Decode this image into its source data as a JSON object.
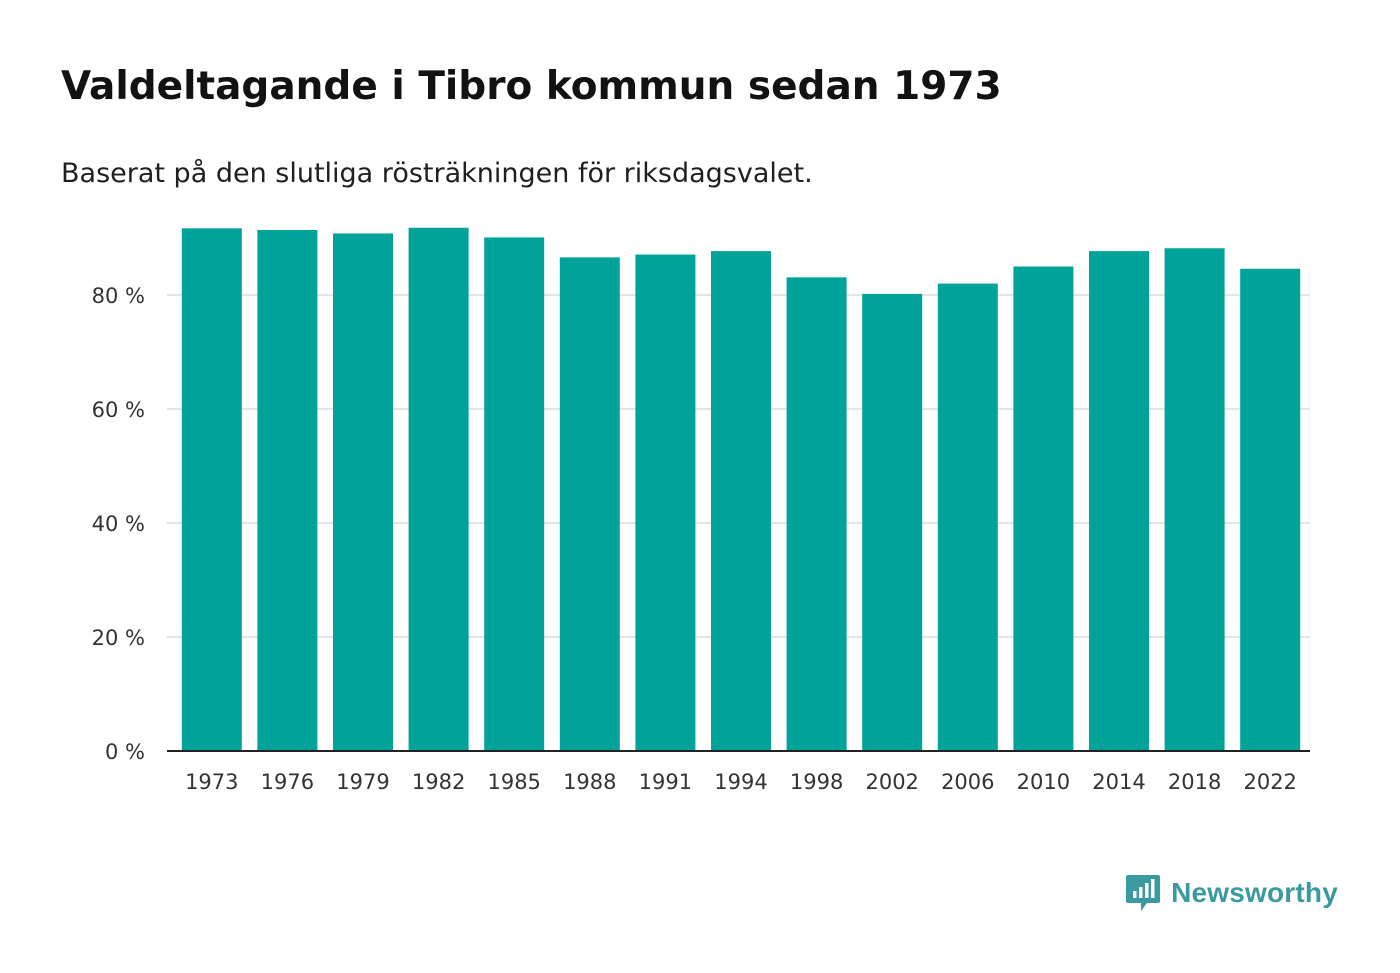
{
  "header": {
    "title": "Valdeltagande i Tibro kommun sedan 1973",
    "subtitle": "Baserat på den slutliga rösträkningen för riksdagsvalet."
  },
  "brand": {
    "name": "Newsworthy",
    "icon": "newsworthy-logo-icon",
    "color": "#3a9aa0"
  },
  "colors": {
    "bar": "#00a39a",
    "grid": "#dcdcdc",
    "axis": "#222222",
    "tick_text": "#333333"
  },
  "chart_data": {
    "type": "bar",
    "title": "Valdeltagande i Tibro kommun sedan 1973",
    "subtitle": "Baserat på den slutliga rösträkningen för riksdagsvalet.",
    "xlabel": "",
    "ylabel": "",
    "categories": [
      "1973",
      "1976",
      "1979",
      "1982",
      "1985",
      "1988",
      "1991",
      "1994",
      "1998",
      "2002",
      "2006",
      "2010",
      "2014",
      "2018",
      "2022"
    ],
    "values": [
      91.7,
      91.4,
      90.8,
      91.8,
      90.1,
      86.6,
      87.1,
      87.7,
      83.1,
      80.2,
      82.0,
      85.0,
      87.7,
      88.2,
      84.6
    ],
    "ylim": [
      0,
      100
    ],
    "yticks": [
      0,
      20,
      40,
      60,
      80
    ],
    "ytick_labels": [
      "0 %",
      "20 %",
      "40 %",
      "60 %",
      "80 %"
    ],
    "grid": true,
    "legend": "none"
  }
}
